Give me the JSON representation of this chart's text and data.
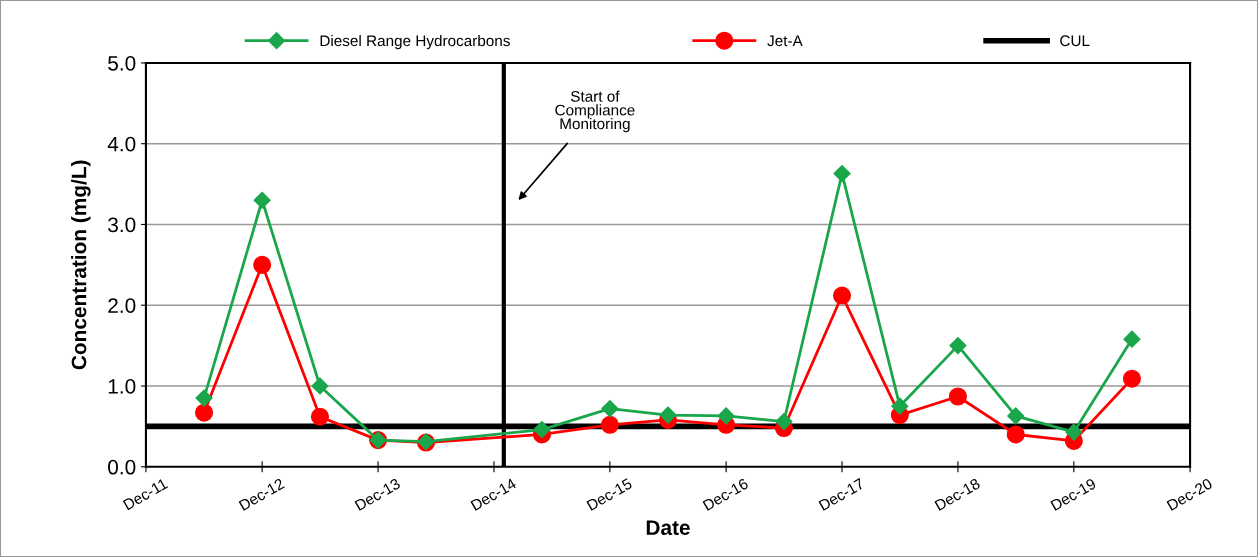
{
  "chart_data": {
    "type": "line",
    "xlabel": "Date",
    "ylabel": "Concentration (mg/L)",
    "x": [
      "2012-06",
      "2012-12",
      "2013-06",
      "2013-12",
      "2014-05",
      "2015-05",
      "2015-12",
      "2016-06",
      "2016-12",
      "2017-06",
      "2017-12",
      "2018-06",
      "2018-12",
      "2019-06",
      "2019-12",
      "2020-06"
    ],
    "series": [
      {
        "name": "Diesel Range Hydrocarbons",
        "color": "#1aa64a",
        "marker": "diamond",
        "values": [
          0.85,
          3.3,
          1.0,
          0.33,
          0.31,
          0.46,
          0.72,
          0.64,
          0.63,
          0.56,
          3.63,
          0.75,
          1.5,
          0.63,
          0.43,
          1.58
        ]
      },
      {
        "name": "Jet-A",
        "color": "#ff0000",
        "marker": "circle",
        "values": [
          0.67,
          2.5,
          0.62,
          0.33,
          0.3,
          0.4,
          0.52,
          0.58,
          0.52,
          0.48,
          2.12,
          0.64,
          0.87,
          0.4,
          0.32,
          1.09
        ]
      }
    ],
    "ref_lines": [
      {
        "axis": "y",
        "value": 0.5,
        "label": "CUL",
        "color": "#000000"
      },
      {
        "axis": "x",
        "value": "2015-01",
        "color": "#000000"
      }
    ],
    "annotations": [
      "Start of\nCompliance\nMonitoring"
    ],
    "xlim": [
      "2011-12-01",
      "2020-12-01"
    ],
    "xticks": [
      {
        "value": "2011-12-01",
        "label": "Dec-11"
      },
      {
        "value": "2012-12-01",
        "label": "Dec-12"
      },
      {
        "value": "2013-12-01",
        "label": "Dec-13"
      },
      {
        "value": "2014-12-01",
        "label": "Dec-14"
      },
      {
        "value": "2015-12-01",
        "label": "Dec-15"
      },
      {
        "value": "2016-12-01",
        "label": "Dec-16"
      },
      {
        "value": "2017-12-01",
        "label": "Dec-17"
      },
      {
        "value": "2018-12-01",
        "label": "Dec-18"
      },
      {
        "value": "2019-12-01",
        "label": "Dec-19"
      },
      {
        "value": "2020-12-01",
        "label": "Dec-20"
      }
    ],
    "ylim": [
      0,
      5
    ],
    "yticks": [
      {
        "value": 0,
        "label": "0.0"
      },
      {
        "value": 1,
        "label": "1.0"
      },
      {
        "value": 2,
        "label": "2.0"
      },
      {
        "value": 3,
        "label": "3.0"
      },
      {
        "value": 4,
        "label": "4.0"
      },
      {
        "value": 5,
        "label": "5.0"
      }
    ],
    "grid": "y",
    "legend": "top",
    "line_style": "solid"
  }
}
